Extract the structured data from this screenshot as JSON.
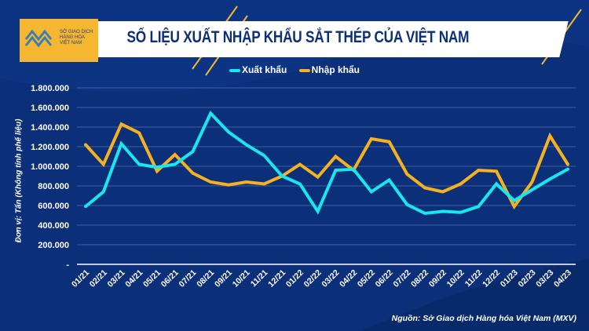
{
  "header": {
    "title": "SỐ LIỆU XUẤT NHẬP KHẨU SẮT THÉP CỦA VIỆT NAM",
    "logo_text": "SỞ GIAO DỊCH HÀNG HÓA VIỆT NAM"
  },
  "colors": {
    "background": "#0b2f78",
    "export": "#19e6ef",
    "import": "#f5b120",
    "accent": "#f5b731"
  },
  "chart_data": {
    "type": "line",
    "title": "SỐ LIỆU XUẤT NHẬP KHẨU SẮT THÉP CỦA VIỆT NAM",
    "ylabel": "Đơn vị: Tấn (Không tính phế liệu)",
    "xlabel": "",
    "ylim": [
      0,
      1800000
    ],
    "yticks": [
      0,
      200000,
      400000,
      600000,
      800000,
      1000000,
      1200000,
      1400000,
      1600000,
      1800000
    ],
    "ytick_labels": [
      "-",
      "200.000",
      "400.000",
      "600.000",
      "800.000",
      "1.000.000",
      "1.200.000",
      "1.400.000",
      "1.600.000",
      "1.800.000"
    ],
    "grid": true,
    "legend_position": "top",
    "categories": [
      "01/21",
      "02/21",
      "03/21",
      "04/21",
      "05/21",
      "06/21",
      "07/21",
      "08/21",
      "09/21",
      "10/21",
      "11/21",
      "12/21",
      "01/22",
      "02/22",
      "03/22",
      "04/22",
      "05/22",
      "06/22",
      "07/22",
      "08/22",
      "09/22",
      "10/22",
      "11/22",
      "12/22",
      "01/23",
      "02/23",
      "03/23",
      "04/23"
    ],
    "series": [
      {
        "name": "Xuất khẩu",
        "color": "#19e6ef",
        "values": [
          590000,
          740000,
          1230000,
          1020000,
          990000,
          1020000,
          1150000,
          1540000,
          1350000,
          1220000,
          1110000,
          900000,
          820000,
          540000,
          960000,
          970000,
          740000,
          860000,
          610000,
          520000,
          540000,
          530000,
          590000,
          820000,
          650000,
          760000,
          870000,
          970000
        ]
      },
      {
        "name": "Nhập khẩu",
        "color": "#f5b120",
        "values": [
          1220000,
          1020000,
          1430000,
          1340000,
          950000,
          1120000,
          930000,
          840000,
          810000,
          840000,
          820000,
          900000,
          1020000,
          890000,
          1100000,
          960000,
          1280000,
          1250000,
          920000,
          780000,
          740000,
          820000,
          960000,
          950000,
          590000,
          840000,
          1310000,
          1020000
        ]
      }
    ]
  },
  "footer": {
    "source": "Nguồn: Sở Giao dịch Hàng hóa Việt Nam (MXV)"
  }
}
